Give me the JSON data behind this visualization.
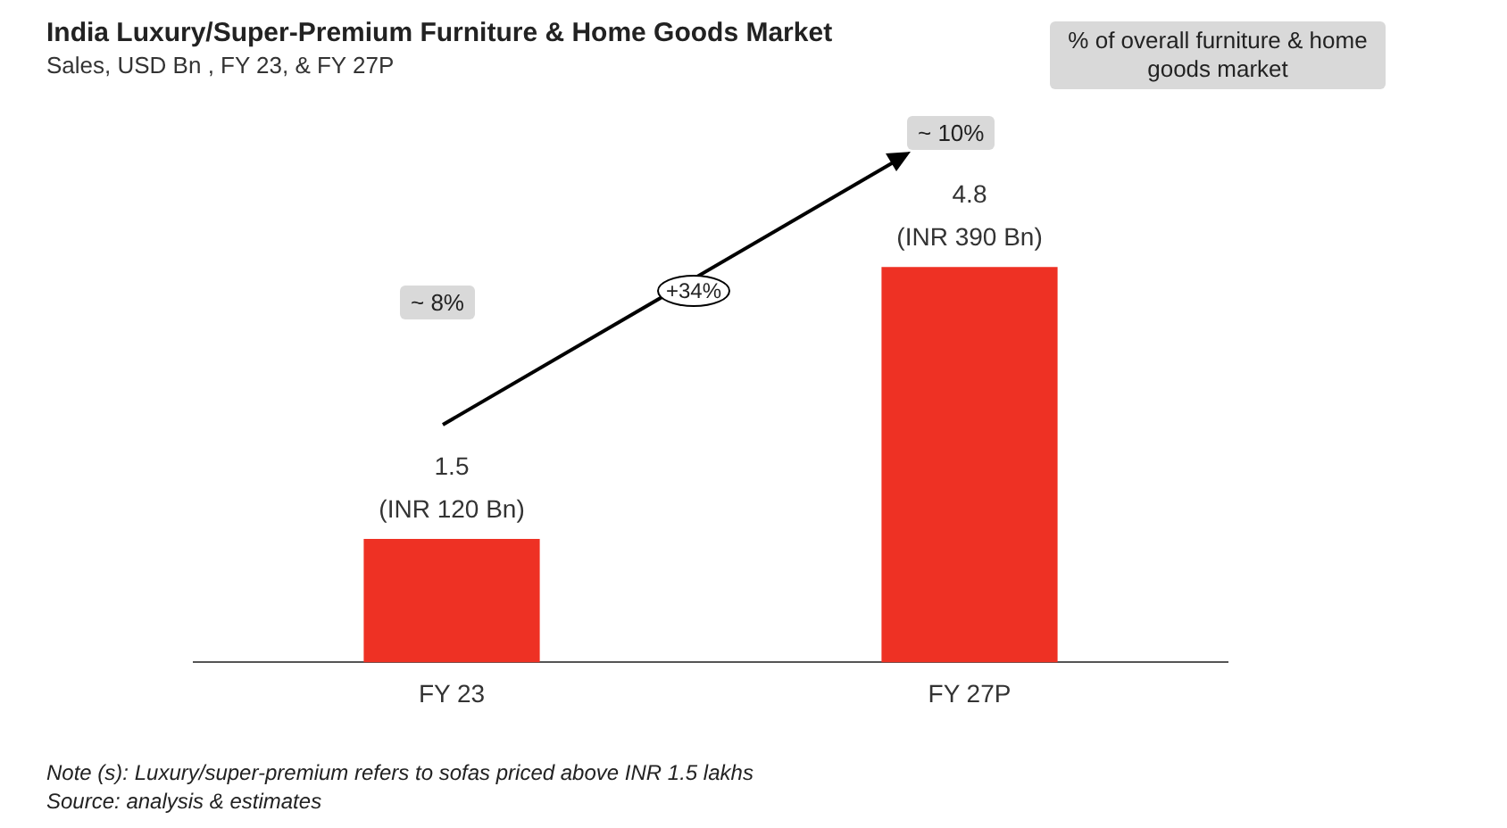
{
  "chart_data": {
    "type": "bar",
    "title": "India Luxury/Super-Premium Furniture & Home Goods Market",
    "subtitle": "Sales, USD Bn , FY 23, & FY 27P",
    "categories": [
      "FY 23",
      "FY 27P"
    ],
    "values": [
      1.5,
      4.8
    ],
    "value_labels": [
      "1.5\n(INR 120 Bn)",
      "4.8\n(INR 390 Bn)"
    ],
    "color": "#ee3124",
    "grid": false,
    "legend": false,
    "annotations": [
      "% of overall furniture & home goods market",
      "~ 8%",
      "~ 10%",
      "+34%",
      "Note (s): Luxury/super-premium refers to sofas priced above INR 1.5 lakhs",
      "Source: analysis & estimates"
    ]
  }
}
